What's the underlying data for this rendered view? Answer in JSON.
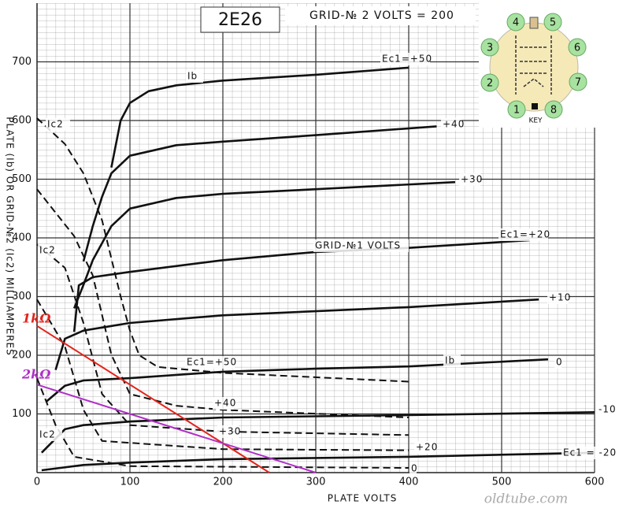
{
  "chart_data": {
    "type": "line",
    "title": "2E26",
    "subtitle": "GRID-№ 2 VOLTS = 200",
    "x_label": "PLATE VOLTS",
    "y_label": "PLATE (Ib) OR GRID-№2 (Ic2) MILLIAMPERES",
    "xlim": [
      0,
      600
    ],
    "ylim": [
      0,
      800
    ],
    "xticks": [
      0,
      100,
      200,
      300,
      400,
      500,
      600
    ],
    "yticks": [
      100,
      200,
      300,
      400,
      500,
      600,
      700
    ],
    "grid": true,
    "series": [
      {
        "name": "Ec1=+50",
        "color": "#111111",
        "style": "solid",
        "x": [
          80,
          90,
          100,
          120,
          150,
          200,
          300,
          400
        ],
        "values": [
          520,
          600,
          630,
          650,
          660,
          668,
          678,
          690
        ]
      },
      {
        "name": "+40",
        "color": "#111111",
        "style": "solid",
        "x": [
          50,
          60,
          70,
          80,
          100,
          150,
          200,
          300,
          430
        ],
        "values": [
          360,
          420,
          470,
          510,
          540,
          558,
          564,
          575,
          590
        ]
      },
      {
        "name": "+30",
        "color": "#111111",
        "style": "solid",
        "x": [
          40,
          50,
          60,
          80,
          100,
          150,
          200,
          300,
          450
        ],
        "values": [
          280,
          320,
          362,
          420,
          450,
          468,
          475,
          483,
          495
        ]
      },
      {
        "name": "Ec1=+20",
        "color": "#111111",
        "style": "solid",
        "x": [
          40,
          45,
          60,
          100,
          200,
          300,
          400,
          530
        ],
        "values": [
          240,
          319,
          333,
          342,
          362,
          376,
          383,
          396
        ]
      },
      {
        "name": "+10",
        "color": "#111111",
        "style": "solid",
        "x": [
          20,
          30,
          50,
          100,
          200,
          300,
          400,
          540
        ],
        "values": [
          175,
          228,
          242,
          255,
          268,
          275,
          282,
          295
        ]
      },
      {
        "name": "0",
        "color": "#111111",
        "style": "solid",
        "x": [
          10,
          30,
          50,
          100,
          200,
          300,
          400,
          550
        ],
        "values": [
          121,
          148,
          157,
          161,
          172,
          177,
          181,
          193
        ]
      },
      {
        "name": "-10",
        "color": "#111111",
        "style": "solid",
        "x": [
          5,
          30,
          50,
          100,
          200,
          400,
          600
        ],
        "values": [
          34,
          74,
          81,
          87,
          94,
          98,
          103
        ]
      },
      {
        "name": "Ec1 = -20",
        "color": "#111111",
        "style": "solid",
        "x": [
          5,
          50,
          100,
          200,
          400,
          600
        ],
        "values": [
          4,
          13,
          17,
          23,
          27,
          34
        ]
      },
      {
        "name": "Ec1=+50",
        "color": "#111111",
        "style": "dashed",
        "x": [
          0,
          30,
          50,
          70,
          90,
          100,
          110,
          130,
          200,
          400
        ],
        "values": [
          604,
          560,
          510,
          430,
          300,
          242,
          200,
          180,
          170,
          155
        ]
      },
      {
        "name": "+40",
        "color": "#111111",
        "style": "dashed",
        "x": [
          0,
          40,
          60,
          80,
          100,
          150,
          200,
          400
        ],
        "values": [
          483,
          403,
          336,
          201,
          134,
          114,
          107,
          94
        ]
      },
      {
        "name": "+30",
        "color": "#111111",
        "style": "dashed",
        "x": [
          0,
          30,
          50,
          70,
          100,
          200,
          400
        ],
        "values": [
          389,
          349,
          255,
          134,
          81,
          70,
          64
        ]
      },
      {
        "name": "+20",
        "color": "#111111",
        "style": "dashed",
        "x": [
          0,
          30,
          50,
          70,
          200,
          400
        ],
        "values": [
          295,
          215,
          107,
          54,
          40,
          38
        ]
      },
      {
        "name": "0",
        "color": "#111111",
        "style": "dashed",
        "x": [
          0,
          20,
          40,
          100,
          400
        ],
        "values": [
          161,
          81,
          27,
          11,
          8
        ]
      },
      {
        "name": "1kΩ",
        "color": "#e3241b",
        "style": "load",
        "x": [
          0,
          250
        ],
        "values": [
          250,
          0
        ]
      },
      {
        "name": "2kΩ",
        "color": "#b02ec8",
        "style": "load",
        "x": [
          0,
          300
        ],
        "values": [
          150,
          0
        ]
      }
    ],
    "annotations": [
      "Ib",
      "Ic2",
      "Ic2",
      "GRID-№1 VOLTS",
      "Ib",
      "Ic2"
    ],
    "watermark": "oldtube.com",
    "pinout": {
      "pins": [
        "1",
        "2",
        "3",
        "4",
        "5",
        "6",
        "7",
        "8"
      ],
      "key": "KEY"
    }
  }
}
